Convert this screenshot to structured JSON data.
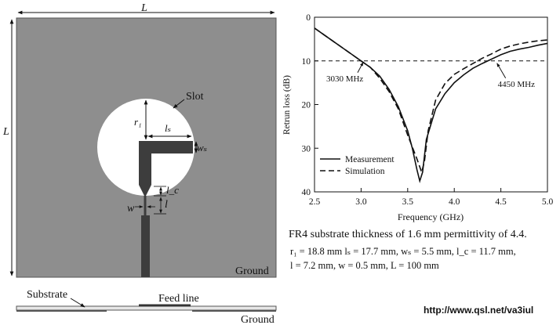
{
  "diagram": {
    "label_L_top": "L",
    "label_L_side": "L",
    "slot": "Slot",
    "r1": "r₁",
    "ls": "lₛ",
    "ws": "wₛ",
    "lc": "l_c",
    "l": "l",
    "w": "w",
    "ground_top": "Ground",
    "substrate": "Substrate",
    "feed_line": "Feed line",
    "ground_bottom": "Ground"
  },
  "caption": {
    "line1": "FR4 substrate thickness of 1.6 mm permittivity of 4.4.",
    "line2": "r₁ = 18.8 mm  lₛ = 17.7 mm, wₛ = 5.5 mm, l_c = 11.7 mm,",
    "line3": "l = 7.2 mm, w = 0.5 mm, L = 100 mm"
  },
  "url": "http://www.qsl.net/va3iul",
  "chart_data": {
    "type": "line",
    "xlabel": "Frequency (GHz)",
    "ylabel": "Retrun loss (dB)",
    "xlim": [
      2.5,
      5.0
    ],
    "ylim": [
      0,
      40
    ],
    "y_inverted": true,
    "xticks": [
      "2.5",
      "3.0",
      "3.5",
      "4.0",
      "4.5",
      "5.0"
    ],
    "yticks": [
      "0",
      "10",
      "20",
      "30",
      "40"
    ],
    "threshold_line": 10,
    "legend_position": "bottom-left",
    "annotations": [
      {
        "text": "3030 MHz",
        "x": 3.03,
        "y": 10
      },
      {
        "text": "4450 MHz",
        "x": 4.45,
        "y": 10
      }
    ],
    "series": [
      {
        "name": "Measurement",
        "style": "solid",
        "x": [
          2.5,
          2.6,
          2.7,
          2.8,
          2.9,
          3.0,
          3.1,
          3.2,
          3.3,
          3.4,
          3.5,
          3.55,
          3.6,
          3.63,
          3.66,
          3.7,
          3.8,
          3.9,
          4.0,
          4.1,
          4.2,
          4.3,
          4.4,
          4.5,
          4.6,
          4.7,
          4.8,
          4.9,
          5.0
        ],
        "values": [
          2.5,
          4,
          5.5,
          7,
          8.5,
          10,
          11.5,
          13.5,
          16.5,
          20.5,
          26,
          30,
          35,
          37.5,
          35.5,
          28,
          21,
          17.5,
          15,
          13.2,
          11.7,
          10.6,
          9.6,
          8.6,
          7.8,
          7.3,
          6.9,
          6.4,
          6
        ]
      },
      {
        "name": "Simulation",
        "style": "dashed",
        "x": [
          2.5,
          2.6,
          2.7,
          2.8,
          2.9,
          3.0,
          3.1,
          3.2,
          3.3,
          3.4,
          3.5,
          3.6,
          3.65,
          3.68,
          3.72,
          3.8,
          3.9,
          4.0,
          4.1,
          4.2,
          4.3,
          4.4,
          4.5,
          4.6,
          4.7,
          4.8,
          4.9,
          5.0
        ],
        "values": [
          2.5,
          4,
          5.5,
          7,
          8.5,
          10,
          11.5,
          14,
          17,
          21,
          27,
          32.5,
          35.5,
          33,
          26,
          19,
          15.2,
          13.1,
          11.8,
          10.6,
          9.4,
          8.4,
          7.3,
          6.6,
          6.1,
          5.7,
          5.4,
          5.2
        ]
      }
    ]
  }
}
